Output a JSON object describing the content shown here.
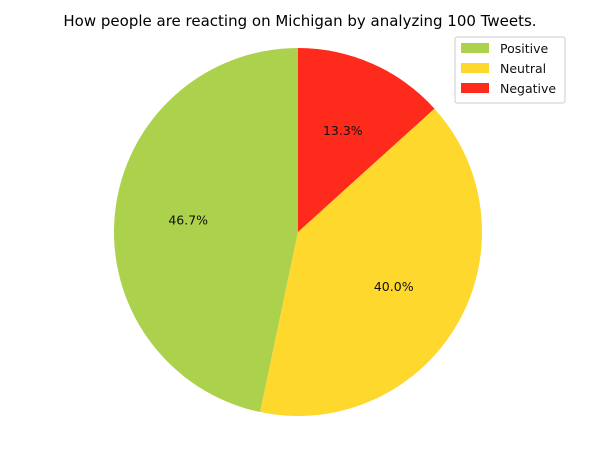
{
  "chart_data": {
    "type": "pie",
    "title": "How people are reacting on Michigan by analyzing 100 Tweets.",
    "slices": [
      {
        "label": "Positive",
        "value": 46.7,
        "pct_label": "46.7%",
        "color": "#acd14c"
      },
      {
        "label": "Neutral",
        "value": 40.0,
        "pct_label": "40.0%",
        "color": "#fed82c"
      },
      {
        "label": "Negative",
        "value": 13.3,
        "pct_label": "13.3%",
        "color": "#fe2a1c"
      }
    ],
    "start_angle_deg": 90,
    "direction": "counterclockwise",
    "legend": {
      "placement": "top-right",
      "entries": [
        "Positive",
        "Neutral",
        "Negative"
      ]
    }
  }
}
